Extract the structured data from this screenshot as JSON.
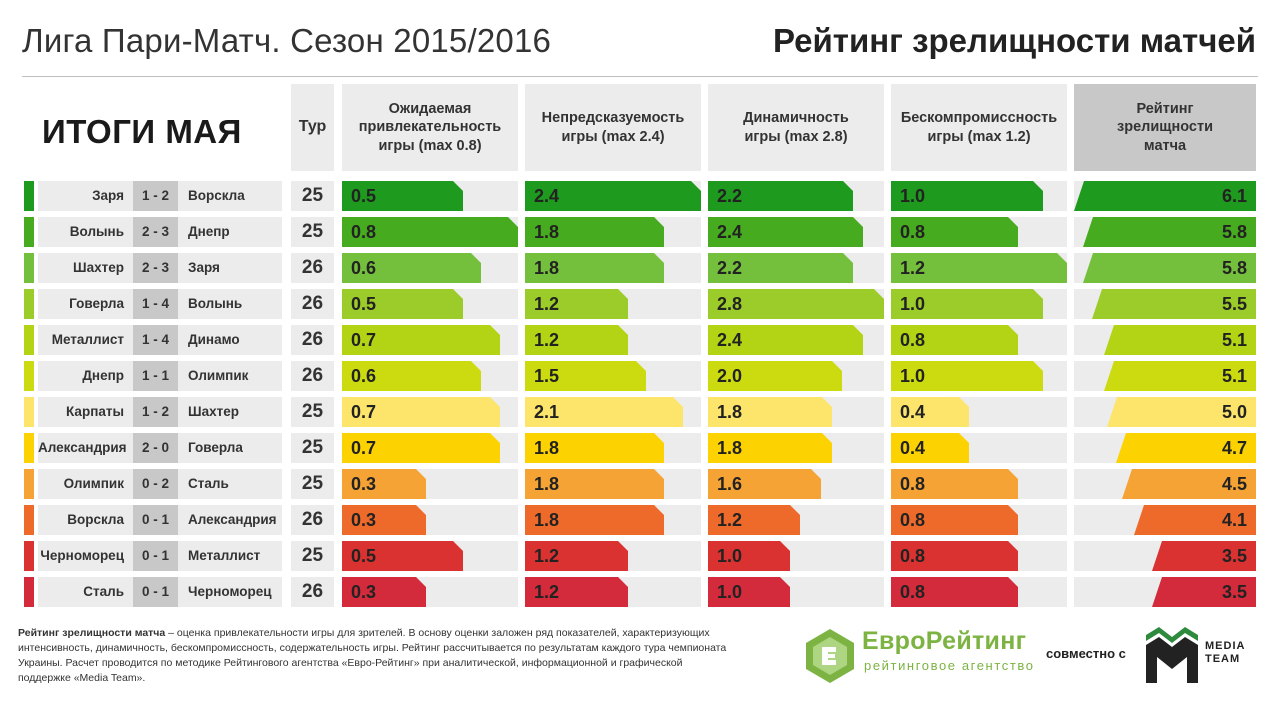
{
  "header": {
    "left_title": "Лига Пари-Матч. Сезон 2015/2016",
    "right_title": "Рейтинг зрелищности матчей"
  },
  "summary_title": "ИТОГИ МАЯ",
  "tour_header": "Тур",
  "columns": [
    {
      "key": "attractiveness",
      "lines": [
        "Ожидаемая",
        "привлекательность",
        "игры (max 0.8)"
      ],
      "max": 0.8
    },
    {
      "key": "unpredictability",
      "lines": [
        "Непредсказуемость",
        "игры (max 2.4)"
      ],
      "max": 2.4
    },
    {
      "key": "dynamics",
      "lines": [
        "Динамичность",
        "игры (max 2.8)"
      ],
      "max": 2.8
    },
    {
      "key": "uncompromising",
      "lines": [
        "Бескомпромиссность",
        "игры (max 1.2)"
      ],
      "max": 1.2
    },
    {
      "key": "rating",
      "lines": [
        "Рейтинг",
        "зрелищности",
        "матча"
      ],
      "max": 6.1
    }
  ],
  "chart_data": {
    "type": "table",
    "title": "Рейтинг зрелищности матчей",
    "subtitle": "Лига Пари-Матч. Сезон 2015/2016 — ИТОГИ МАЯ",
    "columns": [
      "Тур",
      "Ожидаемая привлекательность игры (max 0.8)",
      "Непредсказуемость игры (max 2.4)",
      "Динамичность игры (max 2.8)",
      "Бескомпромиссность игры (max 1.2)",
      "Рейтинг зрелищности матча"
    ],
    "rows": [
      {
        "home": "Заря",
        "score": "1 - 2",
        "away": "Ворскла",
        "tour": "25",
        "attractiveness": "0.5",
        "unpredictability": "2.4",
        "dynamics": "2.2",
        "uncompromising": "1.0",
        "rating": "6.1",
        "color": "#1e9a1e"
      },
      {
        "home": "Волынь",
        "score": "2 - 3",
        "away": "Днепр",
        "tour": "25",
        "attractiveness": "0.8",
        "unpredictability": "1.8",
        "dynamics": "2.4",
        "uncompromising": "0.8",
        "rating": "5.8",
        "color": "#46ab1f"
      },
      {
        "home": "Шахтер",
        "score": "2 - 3",
        "away": "Заря",
        "tour": "26",
        "attractiveness": "0.6",
        "unpredictability": "1.8",
        "dynamics": "2.2",
        "uncompromising": "1.2",
        "rating": "5.8",
        "color": "#74bf3c"
      },
      {
        "home": "Говерла",
        "score": "1 - 4",
        "away": "Волынь",
        "tour": "26",
        "attractiveness": "0.5",
        "unpredictability": "1.2",
        "dynamics": "2.8",
        "uncompromising": "1.0",
        "rating": "5.5",
        "color": "#9ccc2a"
      },
      {
        "home": "Металлист",
        "score": "1 - 4",
        "away": "Динамо",
        "tour": "26",
        "attractiveness": "0.7",
        "unpredictability": "1.2",
        "dynamics": "2.4",
        "uncompromising": "0.8",
        "rating": "5.1",
        "color": "#b3d414"
      },
      {
        "home": "Днепр",
        "score": "1 - 1",
        "away": "Олимпик",
        "tour": "26",
        "attractiveness": "0.6",
        "unpredictability": "1.5",
        "dynamics": "2.0",
        "uncompromising": "1.0",
        "rating": "5.1",
        "color": "#cbdb10"
      },
      {
        "home": "Карпаты",
        "score": "1 - 2",
        "away": "Шахтер",
        "tour": "25",
        "attractiveness": "0.7",
        "unpredictability": "2.1",
        "dynamics": "1.8",
        "uncompromising": "0.4",
        "rating": "5.0",
        "color": "#fce56a"
      },
      {
        "home": "Александрия",
        "score": "2 - 0",
        "away": "Говерла",
        "tour": "25",
        "attractiveness": "0.7",
        "unpredictability": "1.8",
        "dynamics": "1.8",
        "uncompromising": "0.4",
        "rating": "4.7",
        "color": "#fcd300"
      },
      {
        "home": "Олимпик",
        "score": "0 - 2",
        "away": "Сталь",
        "tour": "25",
        "attractiveness": "0.3",
        "unpredictability": "1.8",
        "dynamics": "1.6",
        "uncompromising": "0.8",
        "rating": "4.5",
        "color": "#f5a334"
      },
      {
        "home": "Ворскла",
        "score": "0 - 1",
        "away": "Александрия",
        "tour": "26",
        "attractiveness": "0.3",
        "unpredictability": "1.8",
        "dynamics": "1.2",
        "uncompromising": "0.8",
        "rating": "4.1",
        "color": "#ee6a2b"
      },
      {
        "home": "Черноморец",
        "score": "0 - 1",
        "away": "Металлист",
        "tour": "25",
        "attractiveness": "0.5",
        "unpredictability": "1.2",
        "dynamics": "1.0",
        "uncompromising": "0.8",
        "rating": "3.5",
        "color": "#d93230"
      },
      {
        "home": "Сталь",
        "score": "0 - 1",
        "away": "Черноморец",
        "tour": "26",
        "attractiveness": "0.3",
        "unpredictability": "1.2",
        "dynamics": "1.0",
        "uncompromising": "0.8",
        "rating": "3.5",
        "color": "#d32b3b"
      }
    ]
  },
  "footnote": {
    "bold": "Рейтинг зрелищности матча",
    "text": " – оценка привлекательности игры для зрителей. В основу оценки заложен ряд показателей, характеризующих интенсивность, динамичность, бескомпромиссность, содержательность игры. Рейтинг рассчитывается по результатам каждого тура чемпионата Украины. Расчет проводится по методике Рейтингового агентства «Евро-Рейтинг» при аналитической, информационной и графической поддержке «Media Team»."
  },
  "logos": {
    "euro_name": "ЕвроРейтинг",
    "euro_sub": "рейтинговое агентство",
    "with": "совместно с",
    "mt_line1": "MEDIA",
    "mt_line2": "TEAM"
  },
  "colors": {
    "panel": "#ececec",
    "final_header": "#c8c8c8",
    "brand_green": "#7cb342"
  }
}
